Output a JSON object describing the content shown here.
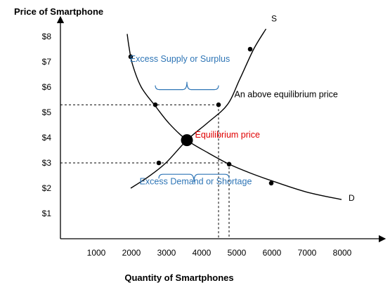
{
  "chart_data": {
    "type": "line",
    "title": "",
    "xlabel": "Quantity of Smartphones",
    "ylabel": "Price of Smartphone",
    "xlim": [
      0,
      8500
    ],
    "ylim": [
      0,
      8.7
    ],
    "x_ticks": [
      1000,
      2000,
      3000,
      4000,
      5000,
      6000,
      7000,
      8000
    ],
    "x_tick_labels": [
      "1000",
      "2000",
      "3000",
      "4000",
      "5000",
      "6000",
      "7000",
      "8000"
    ],
    "y_ticks": [
      1,
      2,
      3,
      4,
      5,
      6,
      7,
      8
    ],
    "y_tick_labels": [
      "$1",
      "$2",
      "$3",
      "$4",
      "$5",
      "$6",
      "$7",
      "$8"
    ],
    "grid": false,
    "series": [
      {
        "name": "S",
        "color": "#000000",
        "x": [
          2000,
          2500,
          3000,
          3600,
          4200,
          4750,
          5100,
          5500,
          5850
        ],
        "y": [
          2.0,
          2.45,
          3.0,
          3.9,
          4.6,
          5.3,
          6.3,
          7.5,
          8.3
        ],
        "points": [
          [
            2800,
            3.0
          ],
          [
            3600,
            3.9
          ],
          [
            4500,
            5.3
          ],
          [
            5400,
            7.5
          ]
        ]
      },
      {
        "name": "D",
        "color": "#000000",
        "x": [
          1900,
          1950,
          2050,
          2300,
          2700,
          3100,
          3600,
          4200,
          4800,
          5400,
          6000,
          7000,
          8000
        ],
        "y": [
          8.1,
          7.6,
          6.9,
          6.0,
          5.25,
          4.55,
          3.9,
          3.4,
          2.95,
          2.6,
          2.3,
          1.85,
          1.55
        ],
        "points": [
          [
            2000,
            7.2
          ],
          [
            2700,
            5.3
          ],
          [
            4800,
            2.95
          ],
          [
            6000,
            2.2
          ]
        ]
      }
    ],
    "equilibrium": {
      "x": 3600,
      "y": 3.9
    },
    "reference_lines": [
      {
        "orientation": "horizontal",
        "y": 5.3,
        "x_to": 4500
      },
      {
        "orientation": "horizontal",
        "y": 3.0,
        "x_to": 4800
      },
      {
        "orientation": "vertical",
        "x": 4500,
        "y_to": 5.3
      },
      {
        "orientation": "vertical",
        "x": 4800,
        "y_to": 3.0
      }
    ],
    "braces": [
      {
        "from_x": 2700,
        "to_x": 4500,
        "y": 5.9,
        "direction": "up"
      },
      {
        "from_x": 2800,
        "to_x": 4800,
        "y": 2.55,
        "direction": "down"
      }
    ],
    "annotations": [
      {
        "text": "Excess Supply or Surplus",
        "x": 3400,
        "y": 7.0,
        "anchor": "middle",
        "color": "#2e75b6"
      },
      {
        "text": "An above equilibrium price",
        "x": 4950,
        "y": 5.6,
        "anchor": "start",
        "color": "#000000"
      },
      {
        "text": "Equilibrium price",
        "x": 3830,
        "y": 4.0,
        "anchor": "start",
        "color": "#e00000"
      },
      {
        "text": "Excess Demand or Shortage",
        "x": 3850,
        "y": 2.15,
        "anchor": "middle",
        "color": "#2e75b6"
      }
    ],
    "curve_labels": [
      {
        "text": "S",
        "x": 6000,
        "y": 8.6
      },
      {
        "text": "D",
        "x": 8200,
        "y": 1.5
      }
    ]
  }
}
